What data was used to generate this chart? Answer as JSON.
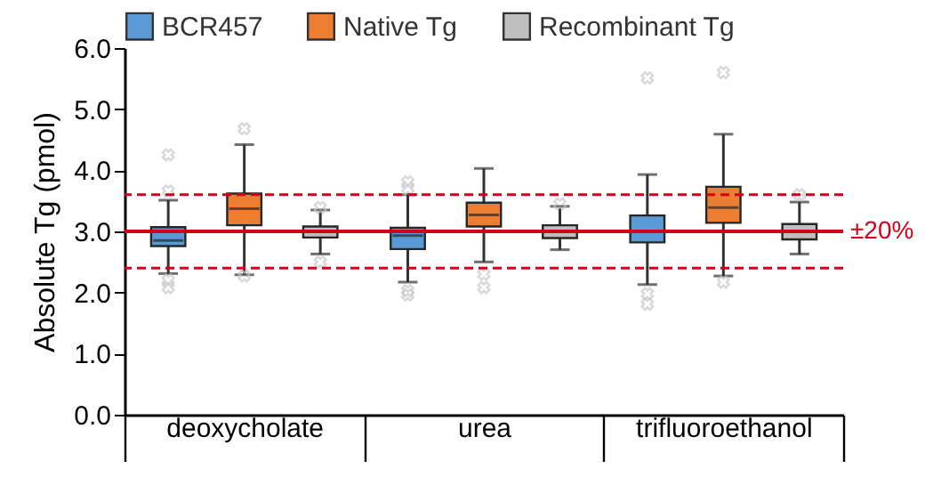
{
  "chart_data": {
    "type": "box",
    "ylabel": "Absolute Tg (pmol)",
    "categories": [
      "deoxycholate",
      "urea",
      "trifluoroethanol"
    ],
    "series": [
      {
        "name": "BCR457",
        "color": "#5b9bd5",
        "boxes": [
          {
            "low": 2.31,
            "q1": 2.76,
            "median": 2.85,
            "q3": 3.07,
            "high": 3.51,
            "outliers": [
              4.25,
              3.66,
              2.2,
              2.08
            ]
          },
          {
            "low": 2.17,
            "q1": 2.71,
            "median": 2.93,
            "q3": 3.06,
            "high": 3.6,
            "outliers": [
              3.81,
              3.7,
              2.03,
              1.96
            ]
          },
          {
            "low": 2.13,
            "q1": 2.82,
            "median": 3.0,
            "q3": 3.26,
            "high": 3.93,
            "outliers": [
              5.51,
              1.98,
              1.81
            ]
          }
        ]
      },
      {
        "name": "Native Tg",
        "color": "#ed7d31",
        "boxes": [
          {
            "low": 2.29,
            "q1": 3.1,
            "median": 3.37,
            "q3": 3.62,
            "high": 4.42,
            "outliers": [
              4.68,
              2.27
            ]
          },
          {
            "low": 2.5,
            "q1": 3.08,
            "median": 3.27,
            "q3": 3.47,
            "high": 4.03,
            "outliers": [
              2.3,
              2.08
            ]
          },
          {
            "low": 2.27,
            "q1": 3.14,
            "median": 3.39,
            "q3": 3.73,
            "high": 4.59,
            "outliers": [
              5.6,
              2.17
            ]
          }
        ]
      },
      {
        "name": "Recombinant Tg",
        "color": "#bfbfbf",
        "boxes": [
          {
            "low": 2.63,
            "q1": 2.9,
            "median": 3.0,
            "q3": 3.08,
            "high": 3.35,
            "outliers": [
              3.39,
              2.5
            ]
          },
          {
            "low": 2.7,
            "q1": 2.89,
            "median": 3.0,
            "q3": 3.1,
            "high": 3.41,
            "outliers": [
              3.45
            ]
          },
          {
            "low": 2.63,
            "q1": 2.87,
            "median": 3.0,
            "q3": 3.12,
            "high": 3.48,
            "outliers": [
              3.6
            ]
          }
        ]
      }
    ],
    "ylim": [
      0,
      6
    ],
    "yticks": [
      {
        "value": 0,
        "label": "0.0"
      },
      {
        "value": 1,
        "label": "1.0"
      },
      {
        "value": 2,
        "label": "2.0"
      },
      {
        "value": 3,
        "label": "3.0"
      },
      {
        "value": 4,
        "label": "4.0"
      },
      {
        "value": 5,
        "label": "5.0"
      },
      {
        "value": 6,
        "label": "6.0"
      }
    ],
    "ref_lines": [
      {
        "axis": "y",
        "value": 3.0,
        "color": "#d0021b",
        "line_style": "solid"
      },
      {
        "axis": "y",
        "value": 3.6,
        "color": "#d0021b",
        "line_style": "dashed"
      },
      {
        "axis": "y",
        "value": 2.4,
        "color": "#d0021b",
        "line_style": "dashed"
      }
    ],
    "annotations": [
      "±20%"
    ],
    "marker": "cross",
    "legend": "top",
    "grid": false
  }
}
